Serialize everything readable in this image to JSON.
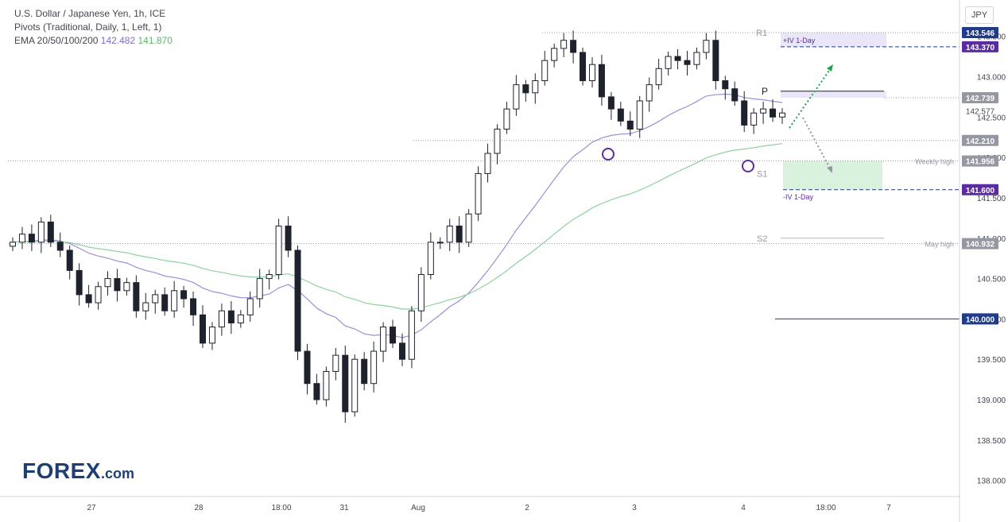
{
  "header": {
    "title": "U.S. Dollar / Japanese Yen, 1h, ICE",
    "pivots": "Pivots (Traditional, Daily, 1, Left, 1)",
    "ema_label": "EMA 20/50/100/200",
    "ema_value_1": "142.482",
    "ema_value_2": "141.870"
  },
  "currency_button": "JPY",
  "logo": {
    "main": "FOREX",
    "suffix": ".com"
  },
  "colors": {
    "candle": "#1e222d",
    "ema_purple": "#9b8fd6",
    "ema_green": "#8fd19e",
    "dark_blue": "#1f3b8a",
    "purple_label": "#5b2ca0",
    "gray_label": "#787b86",
    "arrow_green": "#1ea34a",
    "arrow_gray": "#9598a1",
    "circle": "#5b2ca0"
  },
  "chart_data": {
    "type": "candlestick",
    "title": "U.S. Dollar / Japanese Yen, 1h, ICE",
    "ylim": [
      137.8,
      143.9
    ],
    "y_ticks": [
      138.0,
      138.5,
      139.0,
      139.5,
      140.0,
      140.5,
      141.0,
      141.5,
      142.0,
      142.5,
      143.0,
      143.5
    ],
    "y_tick_labels": [
      "138.000",
      "138.500",
      "139.000",
      "139.500",
      "140.000",
      "140.500",
      "141.000",
      "141.500",
      "142.000",
      "142.500",
      "143.000",
      "143.500"
    ],
    "x_tick_labels": [
      "27",
      "28",
      "18:00",
      "31",
      "Aug",
      "2",
      "3",
      "4",
      "18:00",
      "7"
    ],
    "series": [
      {
        "name": "USD/JPY",
        "values": [
          140.95,
          141.05,
          140.95,
          141.2,
          140.95,
          140.85,
          140.6,
          140.3,
          140.2,
          140.4,
          140.5,
          140.35,
          140.45,
          140.1,
          140.2,
          140.3,
          140.1,
          140.35,
          140.25,
          140.05,
          139.7,
          139.9,
          140.1,
          139.95,
          140.05,
          140.25,
          140.5,
          140.55,
          141.15,
          140.85,
          139.6,
          139.2,
          139.0,
          139.35,
          139.55,
          138.85,
          139.5,
          139.2,
          139.6,
          139.9,
          139.7,
          139.5,
          140.1,
          140.55,
          140.95,
          140.95,
          141.15,
          140.95,
          141.3,
          141.8,
          142.05,
          142.35,
          142.6,
          142.9,
          142.8,
          142.95,
          143.2,
          143.35,
          143.45,
          143.3,
          142.95,
          143.15,
          142.75,
          142.6,
          142.45,
          142.35,
          142.7,
          142.9,
          143.1,
          143.25,
          143.2,
          143.15,
          143.3,
          143.45,
          142.95,
          142.85,
          142.7,
          142.4,
          142.55,
          142.6,
          142.5,
          142.55
        ]
      },
      {
        "name": "EMA 20/50/100/200",
        "values": [
          142.482,
          141.87
        ]
      }
    ],
    "horizontal_levels": [
      {
        "label": "R1",
        "value": 143.546
      },
      {
        "label": "+IV 1-Day",
        "value": 143.37
      },
      {
        "label": "P",
        "value": 142.739
      },
      {
        "label": "142.577",
        "value": 142.577
      },
      {
        "label": "142.210",
        "value": 142.21
      },
      {
        "label": "Weekly high",
        "value": 141.956
      },
      {
        "label": "S1",
        "value": 141.8
      },
      {
        "label": "-IV 1-Day",
        "value": 141.6
      },
      {
        "label": "S2",
        "value": 141.0
      },
      {
        "label": "May high",
        "value": 140.932
      },
      {
        "label": "140.000",
        "value": 140.0
      }
    ],
    "price_labels": [
      "143.546",
      "143.370",
      "142.739",
      "142.577",
      "142.210",
      "141.956",
      "141.600",
      "140.932",
      "140.000"
    ],
    "annotations": [
      "R1",
      "+IV 1-Day",
      "P",
      "Weekly high",
      "S1",
      "-IV 1-Day",
      "S2",
      "May high"
    ]
  }
}
